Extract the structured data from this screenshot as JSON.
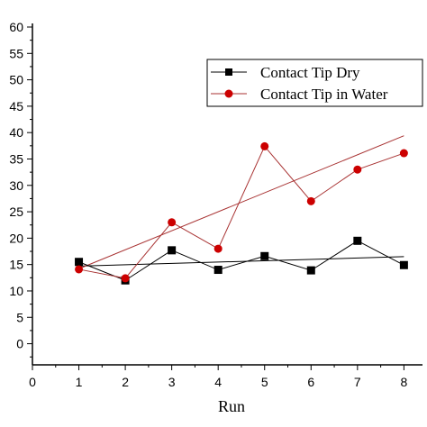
{
  "chart_data": {
    "type": "line",
    "title": "",
    "xlabel": "Run",
    "ylabel": "",
    "xlim": [
      0,
      8.4
    ],
    "ylim": [
      -4,
      60
    ],
    "x_ticks": [
      0,
      1,
      2,
      3,
      4,
      5,
      6,
      7,
      8
    ],
    "y_ticks": [
      0,
      5,
      10,
      15,
      20,
      25,
      30,
      35,
      40,
      45,
      50,
      55,
      60
    ],
    "grid": false,
    "legend_position": "top-right",
    "series": [
      {
        "name": "Contact Tip Dry",
        "color": "#000000",
        "marker": "square",
        "x": [
          1,
          2,
          3,
          4,
          5,
          6,
          7,
          8
        ],
        "y": [
          15.5,
          12.0,
          17.7,
          14.0,
          16.6,
          13.9,
          19.5,
          14.9
        ],
        "trend": [
          [
            1,
            14.7
          ],
          [
            8,
            16.5
          ]
        ]
      },
      {
        "name": "Contact Tip in Water",
        "color": "#cc0000",
        "line_color": "#a83232",
        "marker": "circle",
        "x": [
          1,
          2,
          3,
          4,
          5,
          6,
          7,
          8
        ],
        "y": [
          14.1,
          12.4,
          23.0,
          18.0,
          37.4,
          27.0,
          33.0,
          36.1
        ],
        "trend": [
          [
            1,
            14.2
          ],
          [
            8,
            39.4
          ]
        ]
      }
    ]
  }
}
